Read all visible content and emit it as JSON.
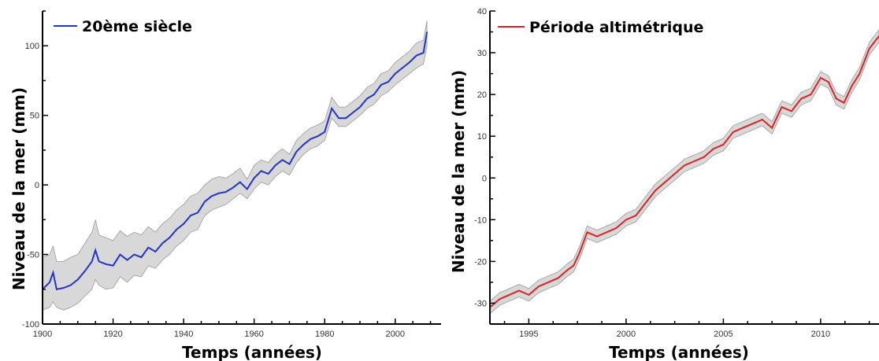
{
  "chart_data": [
    {
      "type": "line",
      "xlabel": "Temps (années)",
      "ylabel": "Niveau de la mer (mm)",
      "xlim": [
        1900,
        2013
      ],
      "ylim": [
        -100,
        125
      ],
      "xticks": [
        1900,
        1920,
        1940,
        1960,
        1980,
        2000
      ],
      "yticks": [
        -100,
        -50,
        0,
        50,
        100
      ],
      "ytick_labels": [
        "-100",
        "-50",
        "0",
        "50",
        "100"
      ],
      "legend_position": "top-left",
      "colors": {
        "line": "#2233cc",
        "band": "#d8d8d8",
        "band_edge": "#9a9a9a"
      },
      "series": [
        {
          "name": "20ème siècle",
          "x": [
            1900,
            1902,
            1903,
            1904,
            1906,
            1908,
            1910,
            1912,
            1914,
            1915,
            1916,
            1918,
            1920,
            1922,
            1924,
            1926,
            1928,
            1930,
            1932,
            1934,
            1936,
            1938,
            1940,
            1942,
            1944,
            1946,
            1948,
            1950,
            1952,
            1954,
            1956,
            1958,
            1960,
            1962,
            1964,
            1966,
            1968,
            1970,
            1972,
            1974,
            1976,
            1978,
            1980,
            1982,
            1984,
            1986,
            1988,
            1990,
            1992,
            1994,
            1996,
            1998,
            2000,
            2002,
            2004,
            2006,
            2008,
            2009
          ],
          "y": [
            -75,
            -70,
            -63,
            -75,
            -74,
            -72,
            -68,
            -62,
            -55,
            -47,
            -55,
            -57,
            -58,
            -50,
            -54,
            -50,
            -52,
            -45,
            -48,
            -42,
            -38,
            -32,
            -28,
            -22,
            -20,
            -12,
            -8,
            -6,
            -5,
            -2,
            2,
            -3,
            5,
            10,
            8,
            14,
            18,
            15,
            24,
            29,
            33,
            35,
            38,
            55,
            48,
            48,
            52,
            56,
            62,
            65,
            72,
            74,
            80,
            84,
            88,
            93,
            95,
            110
          ],
          "band_low": [
            -90,
            -88,
            -84,
            -88,
            -90,
            -88,
            -85,
            -80,
            -75,
            -68,
            -72,
            -75,
            -74,
            -66,
            -70,
            -65,
            -66,
            -58,
            -60,
            -54,
            -50,
            -44,
            -40,
            -34,
            -32,
            -22,
            -18,
            -16,
            -14,
            -10,
            -6,
            -10,
            -3,
            2,
            0,
            6,
            10,
            7,
            16,
            22,
            26,
            28,
            32,
            48,
            42,
            42,
            46,
            50,
            55,
            58,
            64,
            67,
            72,
            76,
            80,
            84,
            87,
            100
          ],
          "band_high": [
            -52,
            -50,
            -44,
            -55,
            -55,
            -52,
            -50,
            -42,
            -34,
            -25,
            -36,
            -38,
            -40,
            -33,
            -37,
            -34,
            -36,
            -30,
            -34,
            -28,
            -24,
            -18,
            -14,
            -8,
            -6,
            0,
            4,
            6,
            5,
            8,
            12,
            4,
            14,
            18,
            16,
            22,
            26,
            22,
            32,
            37,
            41,
            43,
            46,
            63,
            56,
            56,
            60,
            64,
            70,
            73,
            80,
            82,
            88,
            92,
            96,
            102,
            104,
            118
          ]
        }
      ]
    },
    {
      "type": "line",
      "xlabel": "Temps (années)",
      "ylabel": "Niveau de la mer (mm)",
      "xlim": [
        1993,
        2013
      ],
      "ylim": [
        -35,
        40
      ],
      "xticks": [
        1995,
        2000,
        2005,
        2010
      ],
      "yticks": [
        -30,
        -20,
        -10,
        0,
        10,
        20,
        30,
        40
      ],
      "ytick_labels": [
        "-30",
        "-20",
        "-10",
        "0",
        "10",
        "20",
        "30",
        "40"
      ],
      "legend_position": "top-left",
      "colors": {
        "line": "#dd2222",
        "band": "#d8d8d8",
        "band_edge": "#9a9a9a"
      },
      "series": [
        {
          "name": "Période altimétrique",
          "x": [
            1993,
            1993.5,
            1994,
            1994.5,
            1995,
            1995.5,
            1996,
            1996.5,
            1997,
            1997.3,
            1997.6,
            1998,
            1998.5,
            1999,
            1999.5,
            2000,
            2000.5,
            2001,
            2001.5,
            2002,
            2002.5,
            2003,
            2003.5,
            2004,
            2004.5,
            2005,
            2005.5,
            2006,
            2006.5,
            2007,
            2007.5,
            2008,
            2008.5,
            2009,
            2009.5,
            2010,
            2010.4,
            2010.8,
            2011.2,
            2011.6,
            2012,
            2012.5,
            2013
          ],
          "y": [
            -31,
            -29,
            -28,
            -27,
            -28,
            -26,
            -25,
            -24,
            -22,
            -21,
            -18,
            -13,
            -14,
            -13,
            -12,
            -10,
            -9,
            -6,
            -3,
            -1,
            1,
            3,
            4,
            5,
            7,
            8,
            11,
            12,
            13,
            14,
            12,
            17,
            16,
            19,
            20,
            24,
            23,
            19,
            18,
            22,
            25,
            31,
            34
          ],
          "band_low": [
            -32.5,
            -30.5,
            -29.5,
            -28.5,
            -29.5,
            -27.5,
            -26.5,
            -25.5,
            -23.5,
            -22.5,
            -19.5,
            -14.5,
            -15.5,
            -14.5,
            -13.5,
            -11.5,
            -10.5,
            -7.5,
            -4.5,
            -2.5,
            -0.5,
            1.5,
            2.5,
            3.5,
            5.5,
            6.5,
            9.5,
            10.5,
            11.5,
            12.5,
            10.5,
            15.5,
            14.5,
            17.5,
            18.5,
            22.5,
            21.5,
            17.5,
            16.5,
            20.5,
            23.5,
            29.5,
            32.5
          ],
          "band_high": [
            -29.5,
            -27.5,
            -26.5,
            -25.5,
            -26.5,
            -24.5,
            -23.5,
            -22.5,
            -20.5,
            -19.5,
            -16.5,
            -11.5,
            -12.5,
            -11.5,
            -10.5,
            -8.5,
            -7.5,
            -4.5,
            -1.5,
            0.5,
            2.5,
            4.5,
            5.5,
            6.5,
            8.5,
            9.5,
            12.5,
            13.5,
            14.5,
            15.5,
            13.5,
            18.5,
            17.5,
            20.5,
            21.5,
            25.5,
            24.5,
            20.5,
            19.5,
            23.5,
            26.5,
            32.5,
            35.5
          ]
        }
      ]
    }
  ]
}
